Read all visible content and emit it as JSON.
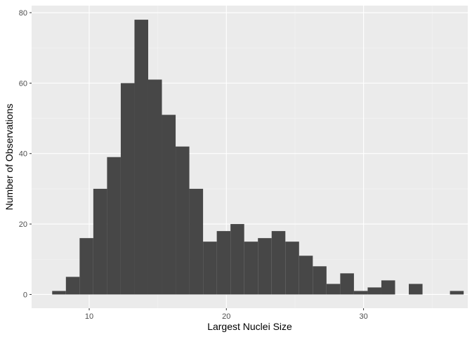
{
  "chart_data": {
    "type": "histogram",
    "xlabel": "Largest Nuclei Size",
    "ylabel": "Number of Observations",
    "xlim": [
      5.8,
      37.6
    ],
    "ylim": [
      -3.9,
      82
    ],
    "x_ticks": [
      10,
      20,
      30
    ],
    "y_ticks": [
      0,
      20,
      40,
      60,
      80
    ],
    "bin_width": 1,
    "bin_start": 7.3,
    "values": [
      1,
      5,
      16,
      30,
      39,
      60,
      78,
      61,
      51,
      42,
      30,
      15,
      18,
      20,
      15,
      16,
      18,
      15,
      11,
      8,
      3,
      6,
      1,
      2,
      4,
      0,
      3,
      0,
      0,
      1
    ],
    "grid": true,
    "colors": {
      "panel": "#ebebeb",
      "bar": "#474747",
      "grid_major": "#ffffff",
      "grid_minor": "#f5f5f5"
    }
  }
}
